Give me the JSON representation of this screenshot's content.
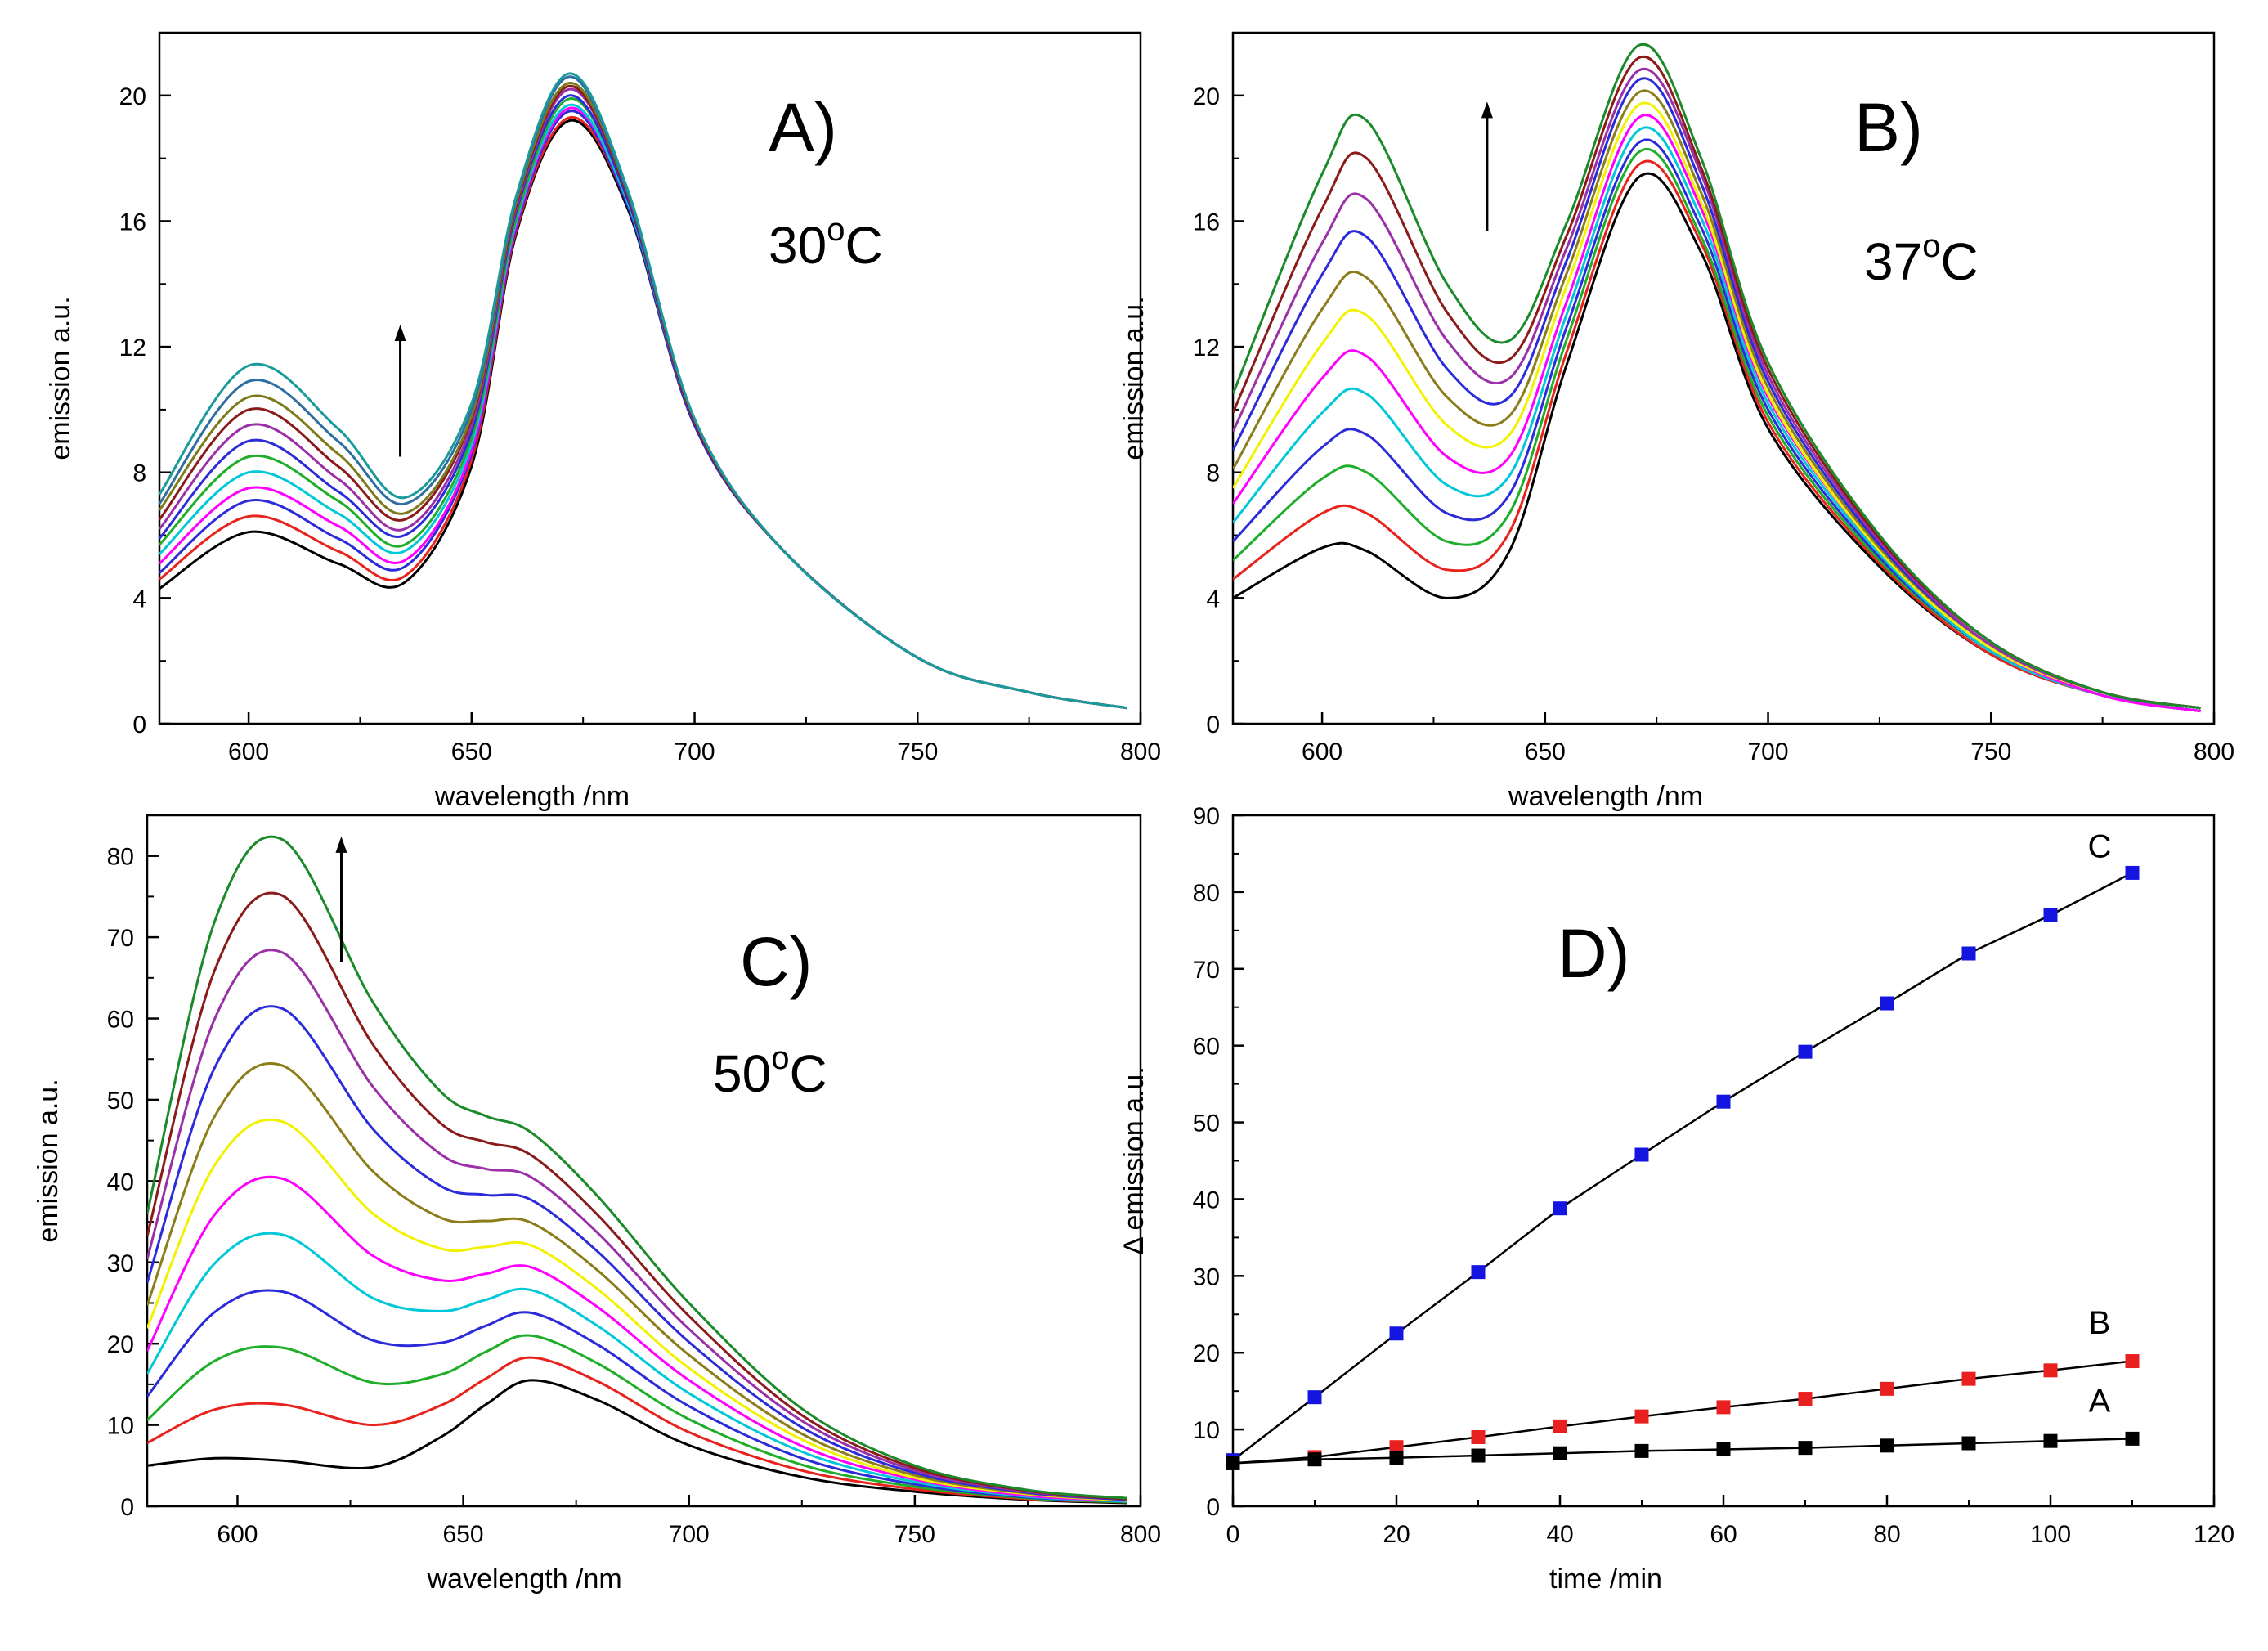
{
  "figure": {
    "background": "#ffffff",
    "axis_color": "#000000"
  },
  "chart_data": [
    {
      "id": "A",
      "type": "line",
      "panel_label": "A)",
      "temperature": {
        "value": "30",
        "sup": "o",
        "unit": "C"
      },
      "xlabel": "wavelength  /nm",
      "ylabel": "emission  a.u.",
      "xlim": [
        580,
        800
      ],
      "ylim": [
        0,
        22
      ],
      "xticks": [
        600,
        650,
        700,
        750,
        800
      ],
      "yticks": [
        0,
        4,
        8,
        12,
        16,
        20
      ],
      "arrow": {
        "x": 634,
        "y_from": 8.5,
        "y_to": 12.6
      },
      "series_colors": [
        "#000000",
        "#e8221c",
        "#2b2bd9",
        "#ff00ff",
        "#00c8d8",
        "#1fae2a",
        "#2b2bd9",
        "#9a2fa8",
        "#8b1a1a",
        "#7d7a1a",
        "#2f6ea0",
        "#1a9a9a"
      ],
      "curve_model": {
        "x": [
          580,
          600,
          620,
          635,
          650,
          660,
          672,
          685,
          700,
          720,
          750,
          775,
          797
        ],
        "first": [
          4.3,
          6.1,
          5.1,
          4.5,
          8.2,
          15.6,
          19.2,
          16.4,
          9.5,
          5.5,
          2.1,
          1.0,
          0.5
        ],
        "last": [
          7.3,
          11.4,
          9.4,
          7.2,
          10.2,
          16.8,
          20.7,
          17.0,
          9.7,
          5.5,
          2.1,
          1.0,
          0.5
        ]
      },
      "series": []
    },
    {
      "id": "B",
      "type": "line",
      "panel_label": "B)",
      "temperature": {
        "value": "37",
        "sup": "o",
        "unit": "C"
      },
      "xlabel": "wavelength  /nm",
      "ylabel": "emission  a.u.",
      "xlim": [
        580,
        800
      ],
      "ylim": [
        0,
        22
      ],
      "xticks": [
        600,
        650,
        700,
        750,
        800
      ],
      "yticks": [
        0,
        4,
        8,
        12,
        16,
        20
      ],
      "arrow": {
        "x": 637,
        "y_from": 15.7,
        "y_to": 19.7
      },
      "series_colors": [
        "#000000",
        "#e8221c",
        "#1fae2a",
        "#2b2bd9",
        "#00c8d8",
        "#ff00ff",
        "#f2f200",
        "#8b7d1a",
        "#2b2bd9",
        "#9a2fa8",
        "#8b1a1a",
        "#1a8a2a"
      ],
      "curve_model": {
        "x": [
          580,
          600,
          610,
          628,
          642,
          655,
          671,
          685,
          700,
          725,
          750,
          775,
          797
        ],
        "first": [
          4.0,
          5.6,
          5.5,
          4.0,
          5.5,
          11.5,
          17.4,
          15.0,
          9.4,
          5.0,
          2.2,
          0.9,
          0.4
        ],
        "last": [
          10.5,
          17.5,
          19.2,
          14.0,
          12.2,
          16.0,
          21.6,
          18.0,
          11.5,
          6.0,
          2.6,
          1.0,
          0.5
        ]
      },
      "series": []
    },
    {
      "id": "C",
      "type": "line",
      "panel_label": "C)",
      "temperature": {
        "value": "50",
        "sup": "o",
        "unit": "C"
      },
      "xlabel": "wavelength  /nm",
      "ylabel": "emission  a.u.",
      "xlim": [
        580,
        800
      ],
      "ylim": [
        0,
        85
      ],
      "xticks": [
        600,
        650,
        700,
        750,
        800
      ],
      "yticks": [
        0,
        10,
        20,
        30,
        40,
        50,
        60,
        70,
        80
      ],
      "arrow": {
        "x": 623,
        "y_from": 67,
        "y_to": 82
      },
      "series_colors": [
        "#000000",
        "#e8221c",
        "#1fae2a",
        "#2b2bd9",
        "#00c8d8",
        "#ff00ff",
        "#f2f200",
        "#8b7d1a",
        "#2b2bd9",
        "#9a2fa8",
        "#8b1a1a",
        "#1a8a2a"
      ],
      "curve_model": {
        "x": [
          580,
          595,
          610,
          630,
          645,
          655,
          665,
          680,
          700,
          725,
          750,
          775,
          797
        ],
        "first": [
          5.0,
          5.9,
          5.6,
          4.8,
          8.5,
          12.5,
          15.5,
          13.0,
          7.5,
          3.6,
          1.8,
          0.8,
          0.4
        ],
        "last": [
          36.0,
          72.0,
          82.0,
          62.0,
          51.0,
          48.0,
          46.0,
          38.0,
          25.0,
          12.0,
          5.0,
          2.0,
          1.0
        ]
      },
      "series": []
    },
    {
      "id": "D",
      "type": "line",
      "panel_label": "D)",
      "xlabel": "time   /min",
      "ylabel": "Δ emission  a.u.",
      "xlim": [
        0,
        120
      ],
      "ylim": [
        0,
        90
      ],
      "xticks": [
        0,
        20,
        40,
        60,
        80,
        100,
        120
      ],
      "yticks": [
        0,
        10,
        20,
        30,
        40,
        50,
        60,
        70,
        80,
        90
      ],
      "series": [
        {
          "name": "C",
          "color": "#1515e0",
          "x": [
            0,
            10,
            20,
            30,
            40,
            50,
            60,
            70,
            80,
            90,
            100,
            110
          ],
          "y": [
            6.0,
            14.2,
            22.5,
            30.5,
            38.8,
            45.8,
            52.7,
            59.2,
            65.5,
            72.0,
            77.0,
            82.5
          ],
          "label_at": [
            106,
            84.5
          ]
        },
        {
          "name": "B",
          "color": "#e82020",
          "x": [
            0,
            10,
            20,
            30,
            40,
            50,
            60,
            70,
            80,
            90,
            100,
            110
          ],
          "y": [
            5.6,
            6.4,
            7.7,
            9.0,
            10.4,
            11.7,
            12.9,
            14.0,
            15.3,
            16.6,
            17.7,
            18.9
          ],
          "label_at": [
            106,
            22.5
          ]
        },
        {
          "name": "A",
          "color": "#000000",
          "x": [
            0,
            10,
            20,
            30,
            40,
            50,
            60,
            70,
            80,
            90,
            100,
            110
          ],
          "y": [
            5.6,
            6.1,
            6.3,
            6.6,
            6.9,
            7.2,
            7.4,
            7.6,
            7.9,
            8.2,
            8.5,
            8.8
          ],
          "label_at": [
            106,
            12.3
          ]
        }
      ]
    }
  ]
}
